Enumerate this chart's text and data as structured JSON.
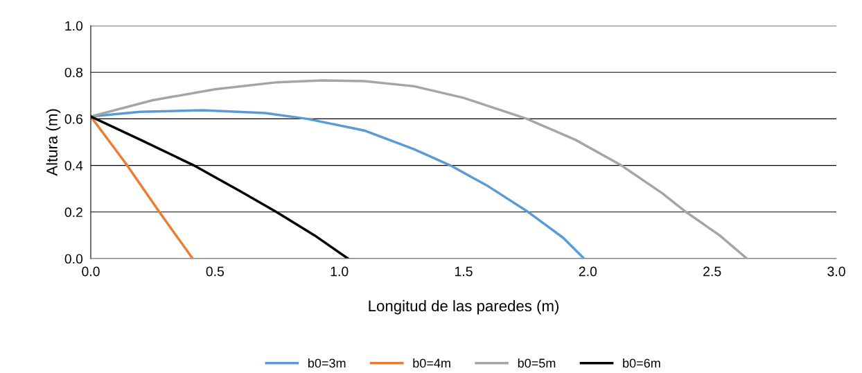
{
  "chart_data": {
    "type": "line",
    "xlabel": "Longitud de las paredes (m)",
    "ylabel": "Altura (m)",
    "xlim": [
      0,
      3
    ],
    "xticks": [
      {
        "value": 0,
        "label": "0.0"
      },
      {
        "value": 0.5,
        "label": "0.5"
      },
      {
        "value": 1,
        "label": "1.0"
      },
      {
        "value": 1.5,
        "label": "1.5"
      },
      {
        "value": 2,
        "label": "2.0"
      },
      {
        "value": 2.5,
        "label": "2.5"
      },
      {
        "value": 3,
        "label": "3.0"
      }
    ],
    "ylim": [
      0,
      1
    ],
    "yticks": [
      {
        "value": 0,
        "label": "0.0"
      },
      {
        "value": 0.2,
        "label": "0.2"
      },
      {
        "value": 0.4,
        "label": "0.4"
      },
      {
        "value": 0.6,
        "label": "0.6"
      },
      {
        "value": 0.8,
        "label": "0.8"
      },
      {
        "value": 1,
        "label": "1.0"
      }
    ],
    "grid": "y",
    "legend": "bottom",
    "marker": "none",
    "line_style": "solid",
    "series": [
      {
        "name": "b0=3m",
        "color": "#5b9bd5",
        "x": [
          0,
          0.2,
          0.45,
          0.7,
          0.87,
          1.1,
          1.3,
          1.447,
          1.6,
          1.76,
          1.9,
          1.985
        ],
        "values": [
          0.61,
          0.63,
          0.637,
          0.625,
          0.6,
          0.55,
          0.47,
          0.4,
          0.31,
          0.2,
          0.09,
          0
        ]
      },
      {
        "name": "b0=4m",
        "color": "#ed7d31",
        "x": [
          0,
          0.14,
          0.276,
          0.41
        ],
        "values": [
          0.61,
          0.41,
          0.2,
          0
        ]
      },
      {
        "name": "b0=5m",
        "color": "#a5a5a5",
        "x": [
          0,
          0.25,
          0.5,
          0.75,
          0.93,
          1.1,
          1.3,
          1.5,
          1.755,
          1.95,
          2.135,
          2.3,
          2.395,
          2.53,
          2.64
        ],
        "values": [
          0.61,
          0.68,
          0.727,
          0.757,
          0.765,
          0.762,
          0.74,
          0.69,
          0.6,
          0.51,
          0.4,
          0.28,
          0.2,
          0.1,
          0
        ]
      },
      {
        "name": "b0=6m",
        "color": "#000000",
        "x": [
          0,
          0.2,
          0.415,
          0.6,
          0.747,
          0.9,
          1.035
        ],
        "values": [
          0.61,
          0.51,
          0.4,
          0.29,
          0.2,
          0.1,
          0
        ]
      }
    ]
  }
}
